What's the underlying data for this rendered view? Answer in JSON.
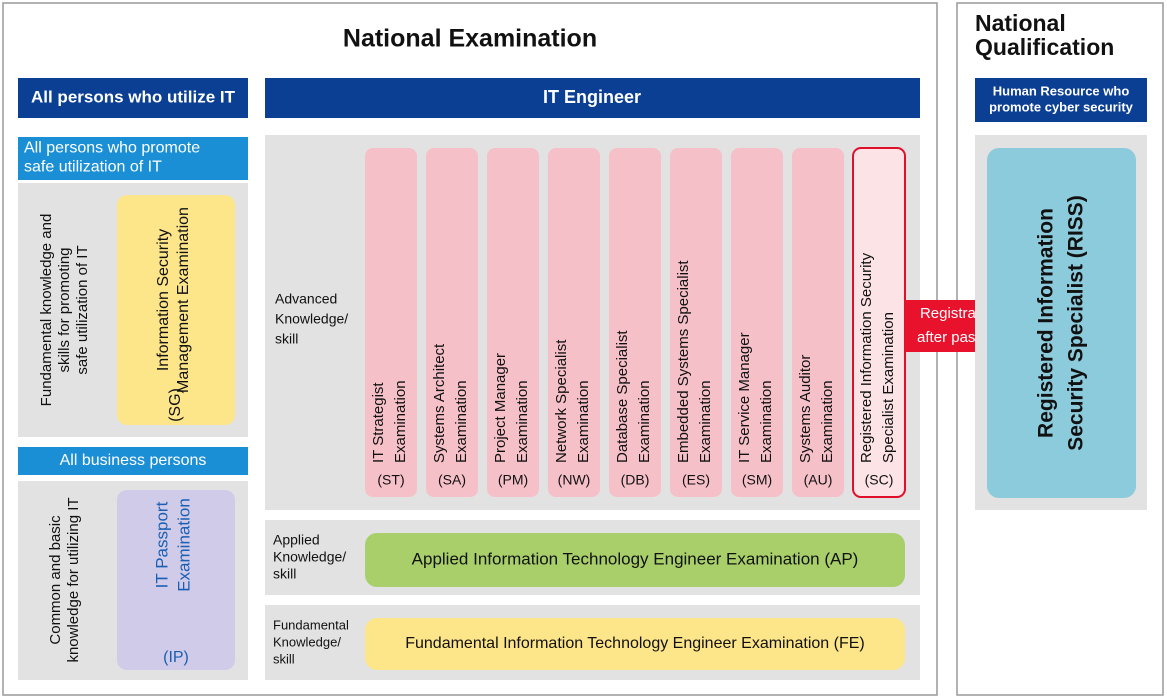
{
  "title": "National Examination",
  "qualification_title": [
    "National",
    "Qualification"
  ],
  "left": {
    "header": "All persons who utilize IT",
    "promote": {
      "header": [
        "All persons who promote",
        "safe utilization of IT"
      ],
      "description": [
        "Fundamental knowledge and",
        "skills for promoting",
        "safe utilization of IT"
      ],
      "exam": [
        "Information Security",
        "Management Examination"
      ],
      "code": "(SG)"
    },
    "business": {
      "header": "All business persons",
      "description": [
        "Common and basic",
        "knowledge for utilizing IT"
      ],
      "exam": [
        "IT Passport",
        "Examination"
      ],
      "code": "(IP)"
    }
  },
  "engineer": {
    "header": "IT Engineer",
    "advanced": {
      "label": [
        "Advanced",
        "Knowledge/",
        "skill"
      ],
      "exams": [
        {
          "name": [
            "IT Strategist",
            "Examination"
          ],
          "code": "(ST)"
        },
        {
          "name": [
            "Systems Architect",
            "Examination"
          ],
          "code": "(SA)"
        },
        {
          "name": [
            "Project Manager",
            "Examination"
          ],
          "code": "(PM)"
        },
        {
          "name": [
            "Network Specialist",
            "Examination"
          ],
          "code": "(NW)"
        },
        {
          "name": [
            "Database Specialist",
            "Examination"
          ],
          "code": "(DB)"
        },
        {
          "name": [
            "Embedded Systems Specialist",
            "Examination"
          ],
          "code": "(ES)"
        },
        {
          "name": [
            "IT Service Manager",
            "Examination"
          ],
          "code": "(SM)"
        },
        {
          "name": [
            "Systems Auditor",
            "Examination"
          ],
          "code": "(AU)"
        },
        {
          "name": [
            "Registered Information Security",
            "Specialist Examination"
          ],
          "code": "(SC)"
        }
      ]
    },
    "applied": {
      "label": [
        "Applied",
        "Knowledge/",
        "skill"
      ],
      "exam": "Applied Information Technology Engineer Examination (AP)"
    },
    "fundamental": {
      "label": [
        "Fundamental",
        "Knowledge/",
        "skill"
      ],
      "exam": "Fundamental Information Technology Engineer Examination (FE)"
    }
  },
  "arrow": [
    "Registration",
    "after passing"
  ],
  "qualification": {
    "header": [
      "Human Resource who",
      "promote cyber security"
    ],
    "name": [
      "Registered Information",
      "Security Specialist (RISS)"
    ]
  }
}
